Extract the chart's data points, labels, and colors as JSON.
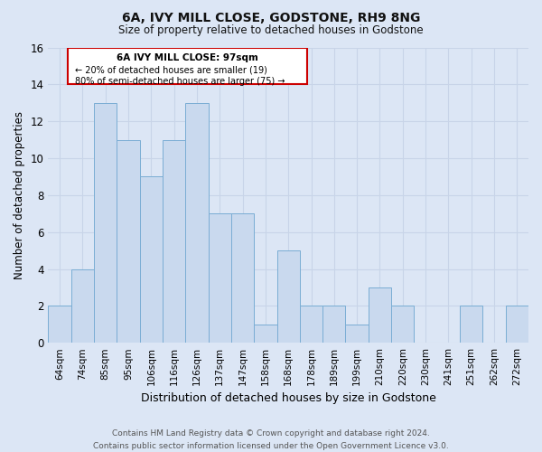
{
  "title": "6A, IVY MILL CLOSE, GODSTONE, RH9 8NG",
  "subtitle": "Size of property relative to detached houses in Godstone",
  "xlabel": "Distribution of detached houses by size in Godstone",
  "ylabel": "Number of detached properties",
  "footer_line1": "Contains HM Land Registry data © Crown copyright and database right 2024.",
  "footer_line2": "Contains public sector information licensed under the Open Government Licence v3.0.",
  "bin_labels": [
    "64sqm",
    "74sqm",
    "85sqm",
    "95sqm",
    "106sqm",
    "116sqm",
    "126sqm",
    "137sqm",
    "147sqm",
    "158sqm",
    "168sqm",
    "178sqm",
    "189sqm",
    "199sqm",
    "210sqm",
    "220sqm",
    "230sqm",
    "241sqm",
    "251sqm",
    "262sqm",
    "272sqm"
  ],
  "bar_heights": [
    2,
    4,
    13,
    11,
    9,
    11,
    13,
    7,
    7,
    1,
    5,
    2,
    2,
    1,
    3,
    2,
    0,
    0,
    2,
    0,
    2
  ],
  "bar_color": "#c9d9ee",
  "bar_edge_color": "#7aadd4",
  "ylim": [
    0,
    16
  ],
  "yticks": [
    0,
    2,
    4,
    6,
    8,
    10,
    12,
    14,
    16
  ],
  "annotation_title": "6A IVY MILL CLOSE: 97sqm",
  "annotation_line2": "← 20% of detached houses are smaller (19)",
  "annotation_line3": "80% of semi-detached houses are larger (75) →",
  "annotation_box_color": "#ffffff",
  "annotation_box_edge_color": "#cc0000",
  "grid_color": "#c8d4e8",
  "background_color": "#dce6f5",
  "plot_bg_color": "#dce6f5"
}
